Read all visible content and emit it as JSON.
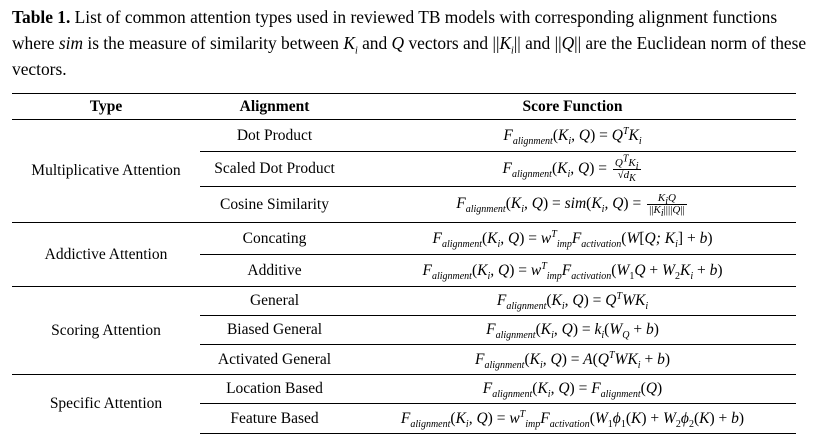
{
  "caption": {
    "label": "Table 1.",
    "text_1": " List of common attention types used in reviewed TB models with corresponding alignment functions where ",
    "sim": "sim",
    "text_2": " is the measure of similarity between ",
    "ki": "K",
    "ki_sub": "i",
    "text_3": " and ",
    "q": "Q",
    "text_4": " vectors and ||",
    "ki2": "K",
    "ki2_sub": "i",
    "text_5": "|| and ||",
    "q2": "Q",
    "text_6": "|| are the Euclidean norm of these vectors."
  },
  "table": {
    "headers": {
      "type": "Type",
      "alignment": "Alignment",
      "score": "Score Function"
    },
    "groups": [
      {
        "type": "Multiplicative Attention",
        "rows": [
          {
            "alignment": "Dot Product"
          },
          {
            "alignment": "Scaled Dot Product"
          },
          {
            "alignment": "Cosine Similarity"
          }
        ]
      },
      {
        "type": "Addictive Attention",
        "rows": [
          {
            "alignment": "Concating"
          },
          {
            "alignment": "Additive"
          }
        ]
      },
      {
        "type": "Scoring Attention",
        "rows": [
          {
            "alignment": "General"
          },
          {
            "alignment": "Biased General"
          },
          {
            "alignment": "Activated General"
          }
        ]
      },
      {
        "type": "Specific Attention",
        "rows": [
          {
            "alignment": "Location Based"
          },
          {
            "alignment": "Feature Based"
          }
        ]
      }
    ]
  }
}
